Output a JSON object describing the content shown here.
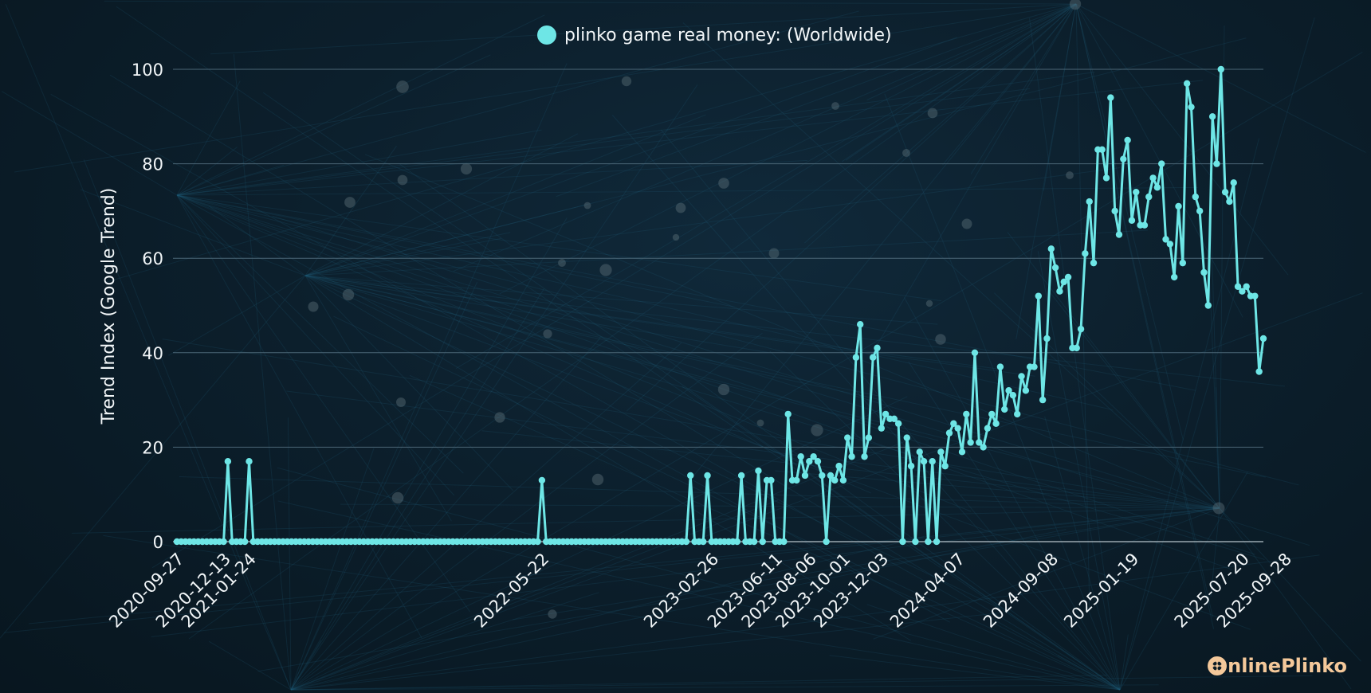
{
  "chart_data": {
    "type": "line",
    "title": "",
    "ylabel": "Trend Index (Google Trend)",
    "xlabel": "",
    "ylim": [
      0,
      100
    ],
    "yticks": [
      0,
      20,
      40,
      60,
      80,
      100
    ],
    "xtick_labels": [
      "2020-09-27",
      "2020-12-13",
      "2021-01-24",
      "2022-05-22",
      "2023-02-26",
      "2023-06-11",
      "2023-08-06",
      "2023-10-01",
      "2023-12-03",
      "2024-04-07",
      "2024-09-08",
      "2025-01-19",
      "2025-07-20",
      "2025-09-28"
    ],
    "legend_position": "top-center",
    "grid": "horizontal",
    "series": [
      {
        "name": "plinko game real money: (Worldwide)",
        "color": "#6ee6e6",
        "points": [
          [
            "2020-09-27",
            0
          ],
          [
            "2020-12-13",
            0
          ],
          [
            "2020-12-20",
            17
          ],
          [
            "2020-12-27",
            0
          ],
          [
            "2021-01-17",
            0
          ],
          [
            "2021-01-24",
            17
          ],
          [
            "2021-01-31",
            0
          ],
          [
            "2022-05-15",
            0
          ],
          [
            "2022-05-22",
            13
          ],
          [
            "2022-05-29",
            0
          ],
          [
            "2023-01-15",
            0
          ],
          [
            "2023-01-22",
            14
          ],
          [
            "2023-01-29",
            0
          ],
          [
            "2023-02-12",
            0
          ],
          [
            "2023-02-19",
            14
          ],
          [
            "2023-02-26",
            0
          ],
          [
            "2023-04-09",
            0
          ],
          [
            "2023-04-16",
            14
          ],
          [
            "2023-04-23",
            0
          ],
          [
            "2023-05-07",
            0
          ],
          [
            "2023-05-14",
            15
          ],
          [
            "2023-05-21",
            0
          ],
          [
            "2023-05-28",
            13
          ],
          [
            "2023-06-04",
            13
          ],
          [
            "2023-06-11",
            0
          ],
          [
            "2023-06-25",
            0
          ],
          [
            "2023-07-02",
            27
          ],
          [
            "2023-07-09",
            13
          ],
          [
            "2023-07-16",
            13
          ],
          [
            "2023-07-23",
            18
          ],
          [
            "2023-07-30",
            14
          ],
          [
            "2023-08-06",
            17
          ],
          [
            "2023-08-13",
            18
          ],
          [
            "2023-08-20",
            17
          ],
          [
            "2023-08-27",
            14
          ],
          [
            "2023-09-03",
            0
          ],
          [
            "2023-09-10",
            14
          ],
          [
            "2023-09-17",
            13
          ],
          [
            "2023-09-24",
            16
          ],
          [
            "2023-10-01",
            13
          ],
          [
            "2023-10-08",
            22
          ],
          [
            "2023-10-15",
            18
          ],
          [
            "2023-10-22",
            39
          ],
          [
            "2023-10-29",
            46
          ],
          [
            "2023-11-05",
            18
          ],
          [
            "2023-11-12",
            22
          ],
          [
            "2023-11-19",
            39
          ],
          [
            "2023-11-26",
            41
          ],
          [
            "2023-12-03",
            24
          ],
          [
            "2023-12-10",
            27
          ],
          [
            "2023-12-17",
            26
          ],
          [
            "2023-12-24",
            26
          ],
          [
            "2023-12-31",
            25
          ],
          [
            "2024-01-07",
            0
          ],
          [
            "2024-01-14",
            22
          ],
          [
            "2024-01-21",
            16
          ],
          [
            "2024-01-28",
            0
          ],
          [
            "2024-02-04",
            19
          ],
          [
            "2024-02-11",
            17
          ],
          [
            "2024-02-18",
            0
          ],
          [
            "2024-02-25",
            17
          ],
          [
            "2024-03-03",
            0
          ],
          [
            "2024-03-10",
            19
          ],
          [
            "2024-03-17",
            16
          ],
          [
            "2024-03-24",
            23
          ],
          [
            "2024-03-31",
            25
          ],
          [
            "2024-04-07",
            24
          ],
          [
            "2024-04-14",
            19
          ],
          [
            "2024-04-21",
            27
          ],
          [
            "2024-04-28",
            21
          ],
          [
            "2024-05-05",
            40
          ],
          [
            "2024-05-12",
            21
          ],
          [
            "2024-05-19",
            20
          ],
          [
            "2024-05-26",
            24
          ],
          [
            "2024-06-02",
            27
          ],
          [
            "2024-06-09",
            25
          ],
          [
            "2024-06-16",
            37
          ],
          [
            "2024-06-23",
            28
          ],
          [
            "2024-06-30",
            32
          ],
          [
            "2024-07-07",
            31
          ],
          [
            "2024-07-14",
            27
          ],
          [
            "2024-07-21",
            35
          ],
          [
            "2024-07-28",
            32
          ],
          [
            "2024-08-04",
            37
          ],
          [
            "2024-08-11",
            37
          ],
          [
            "2024-08-18",
            52
          ],
          [
            "2024-08-25",
            30
          ],
          [
            "2024-09-01",
            43
          ],
          [
            "2024-09-08",
            62
          ],
          [
            "2024-09-15",
            58
          ],
          [
            "2024-09-22",
            53
          ],
          [
            "2024-09-29",
            55
          ],
          [
            "2024-10-06",
            56
          ],
          [
            "2024-10-13",
            41
          ],
          [
            "2024-10-20",
            41
          ],
          [
            "2024-10-27",
            45
          ],
          [
            "2024-11-03",
            61
          ],
          [
            "2024-11-10",
            72
          ],
          [
            "2024-11-17",
            59
          ],
          [
            "2024-11-24",
            83
          ],
          [
            "2024-12-01",
            83
          ],
          [
            "2024-12-08",
            77
          ],
          [
            "2024-12-15",
            94
          ],
          [
            "2024-12-22",
            70
          ],
          [
            "2024-12-29",
            65
          ],
          [
            "2025-01-05",
            81
          ],
          [
            "2025-01-12",
            85
          ],
          [
            "2025-01-19",
            68
          ],
          [
            "2025-01-26",
            74
          ],
          [
            "2025-02-02",
            67
          ],
          [
            "2025-02-09",
            67
          ],
          [
            "2025-02-16",
            73
          ],
          [
            "2025-02-23",
            77
          ],
          [
            "2025-03-02",
            75
          ],
          [
            "2025-03-09",
            80
          ],
          [
            "2025-03-16",
            64
          ],
          [
            "2025-03-23",
            63
          ],
          [
            "2025-03-30",
            56
          ],
          [
            "2025-04-06",
            71
          ],
          [
            "2025-04-13",
            59
          ],
          [
            "2025-04-20",
            97
          ],
          [
            "2025-04-27",
            92
          ],
          [
            "2025-05-04",
            73
          ],
          [
            "2025-05-11",
            70
          ],
          [
            "2025-05-18",
            57
          ],
          [
            "2025-05-25",
            50
          ],
          [
            "2025-06-01",
            90
          ],
          [
            "2025-06-08",
            80
          ],
          [
            "2025-06-15",
            100
          ],
          [
            "2025-06-22",
            74
          ],
          [
            "2025-06-29",
            72
          ],
          [
            "2025-07-06",
            76
          ],
          [
            "2025-07-13",
            54
          ],
          [
            "2025-07-20",
            53
          ],
          [
            "2025-07-27",
            54
          ],
          [
            "2025-08-03",
            52
          ],
          [
            "2025-08-10",
            52
          ],
          [
            "2025-08-17",
            36
          ],
          [
            "2025-08-24",
            43
          ]
        ]
      }
    ]
  },
  "brand": {
    "part1": "nline",
    "part2": "Plinko"
  }
}
